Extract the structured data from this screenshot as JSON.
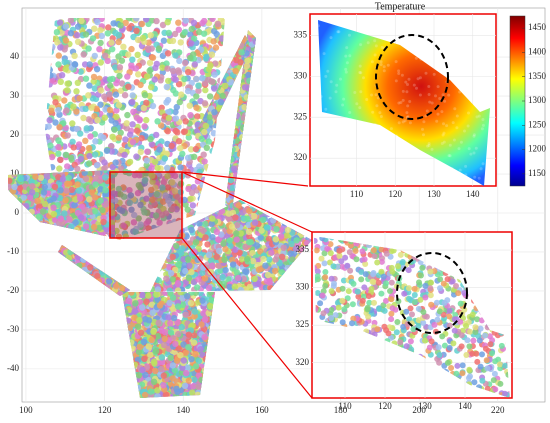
{
  "chart_data": [
    {
      "type": "scatter",
      "xlim": [
        99,
        232
      ],
      "ylim": [
        -48.5,
        52.6
      ],
      "xticks": [
        100,
        120,
        140,
        160,
        180,
        200,
        220
      ],
      "yticks": [
        -40,
        -30,
        -20,
        -10,
        0,
        10,
        20,
        30,
        40
      ],
      "grid": true
    },
    {
      "type": "scatter",
      "title": "Temperature",
      "xlim": [
        98,
        146
      ],
      "ylim": [
        316.6,
        337.6
      ],
      "xticks": [
        110,
        120,
        130,
        140
      ],
      "yticks": [
        320,
        325,
        330,
        335
      ],
      "grid": true,
      "colorbar": {
        "clim": [
          1125,
          1475
        ],
        "ticks": [
          1150,
          1200,
          1250,
          1300,
          1350,
          1400,
          1450
        ],
        "colormap": "jet"
      }
    },
    {
      "type": "scatter",
      "xlim": [
        101.75,
        151.75
      ],
      "ylim": [
        315.3,
        337.4
      ],
      "xticks": [
        110,
        120,
        130,
        140
      ],
      "yticks": [
        320,
        325,
        330,
        335
      ],
      "grid": true
    }
  ]
}
